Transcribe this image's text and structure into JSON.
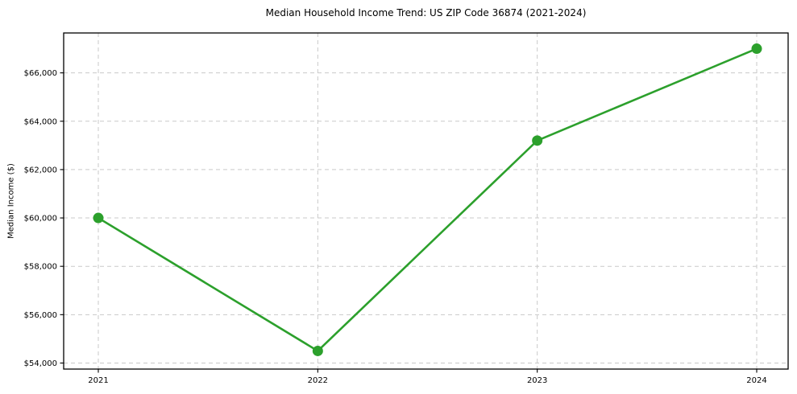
{
  "chart_data": {
    "type": "line",
    "title": "Median Household Income Trend: US ZIP Code 36874 (2021-2024)",
    "xlabel": "",
    "ylabel": "Median Income ($)",
    "x": [
      2021,
      2022,
      2023,
      2024
    ],
    "xtick_labels": [
      "2021",
      "2022",
      "2023",
      "2024"
    ],
    "values": [
      60000,
      54500,
      63200,
      67000
    ],
    "ylim": [
      53750,
      67650
    ],
    "yticks": [
      54000,
      56000,
      58000,
      60000,
      62000,
      64000,
      66000
    ],
    "ytick_labels": [
      "$54,000",
      "$56,000",
      "$58,000",
      "$60,000",
      "$62,000",
      "$64,000",
      "$66,000"
    ],
    "grid": true,
    "grid_style": "dashed",
    "legend_position": "none",
    "line_color": "#2ca02c",
    "marker": "circle",
    "grid_color": "#c9c9c9",
    "spine_color": "#000000",
    "background_color": "#ffffff"
  }
}
